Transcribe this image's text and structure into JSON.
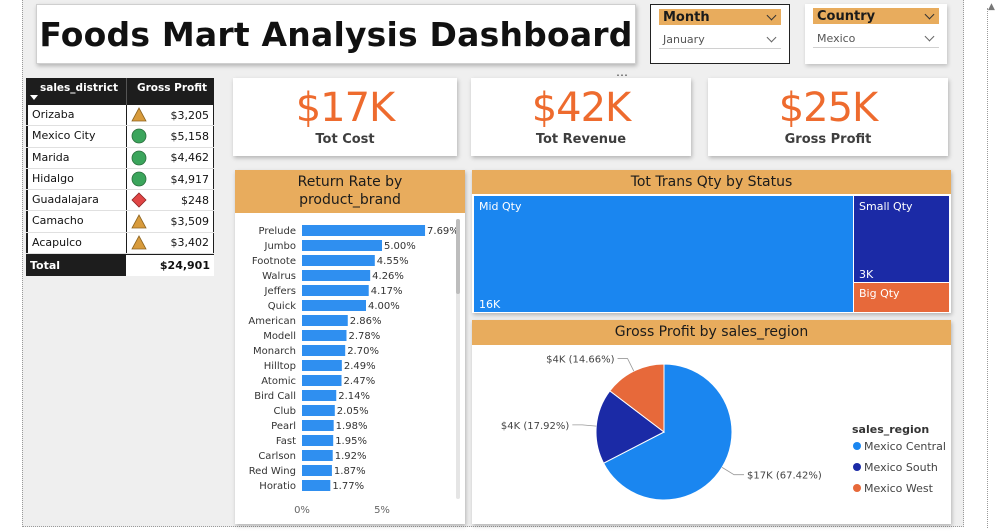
{
  "dashboard": {
    "title": "Foods Mart Analysis Dashboard"
  },
  "slicers": {
    "month": {
      "label": "Month",
      "value": "January"
    },
    "country": {
      "label": "Country",
      "value": "Mexico"
    }
  },
  "more_options": "⋯",
  "table": {
    "headers": [
      "sales_district",
      "Gross Profit"
    ],
    "rows": [
      {
        "district": "Orizaba",
        "value": "$3,205",
        "icon": "triangle-icon"
      },
      {
        "district": "Mexico City",
        "value": "$5,158",
        "icon": "circle-icon"
      },
      {
        "district": "Marida",
        "value": "$4,462",
        "icon": "circle-icon"
      },
      {
        "district": "Hidalgo",
        "value": "$4,917",
        "icon": "circle-icon"
      },
      {
        "district": "Guadalajara",
        "value": "$248",
        "icon": "diamond-icon"
      },
      {
        "district": "Camacho",
        "value": "$3,509",
        "icon": "triangle-icon"
      },
      {
        "district": "Acapulco",
        "value": "$3,402",
        "icon": "triangle-icon"
      }
    ],
    "total_label": "Total",
    "total_value": "$24,901"
  },
  "kpis": [
    {
      "value": "$17K",
      "label": "Tot Cost"
    },
    {
      "value": "$42K",
      "label": "Tot Revenue"
    },
    {
      "value": "$25K",
      "label": "Gross Profit"
    }
  ],
  "colors": {
    "accent_orange": "#ee6b2e",
    "header_gold": "#e8ac5d",
    "bar_blue": "#2f8ff0",
    "mexico_central": "#1a86f0",
    "mexico_south": "#1b2aa6",
    "mexico_west": "#e7693a",
    "icon_triangle": "#d89b3c",
    "icon_circle": "#3ba55c",
    "icon_diamond": "#e04545"
  },
  "return_rate": {
    "title_line1": "Return Rate by",
    "title_line2": "product_brand"
  },
  "trans_qty": {
    "title": "Tot Trans Qty by Status"
  },
  "gross_profit_region": {
    "title": "Gross Profit by sales_region",
    "legend_title": "sales_region"
  },
  "chart_data": [
    {
      "type": "bar",
      "orientation": "horizontal",
      "title": "Return Rate by product_brand",
      "categories": [
        "Prelude",
        "Jumbo",
        "Footnote",
        "Walrus",
        "Jeffers",
        "Quick",
        "American",
        "Modell",
        "Monarch",
        "Hilltop",
        "Atomic",
        "Bird Call",
        "Club",
        "Pearl",
        "Fast",
        "Carlson",
        "Red Wing",
        "Horatio"
      ],
      "values": [
        7.69,
        5.0,
        4.55,
        4.26,
        4.17,
        4.0,
        2.86,
        2.78,
        2.7,
        2.49,
        2.47,
        2.14,
        2.05,
        1.98,
        1.95,
        1.92,
        1.87,
        1.77
      ],
      "data_labels": [
        "7.69%",
        "5.00%",
        "4.55%",
        "4.26%",
        "4.17%",
        "4.00%",
        "2.86%",
        "2.78%",
        "2.70%",
        "2.49%",
        "2.47%",
        "2.14%",
        "2.05%",
        "1.98%",
        "1.95%",
        "1.92%",
        "1.87%",
        "1.77%"
      ],
      "x_ticks": [
        "0%",
        "5%"
      ],
      "xlim": [
        0,
        8
      ]
    },
    {
      "type": "treemap",
      "title": "Tot Trans Qty by Status",
      "categories": [
        "Mid Qty",
        "Small Qty",
        "Big Qty"
      ],
      "values": [
        16000,
        3000,
        1000
      ],
      "data_labels": [
        "16K",
        "3K",
        ""
      ]
    },
    {
      "type": "pie",
      "title": "Gross Profit by sales_region",
      "categories": [
        "Mexico Central",
        "Mexico South",
        "Mexico West"
      ],
      "values": [
        67.42,
        17.92,
        14.66
      ],
      "data_labels": [
        "$17K (67.42%)",
        "$4K (17.92%)",
        "$4K (14.66%)"
      ],
      "legend_title": "sales_region",
      "legend_position": "right"
    }
  ]
}
